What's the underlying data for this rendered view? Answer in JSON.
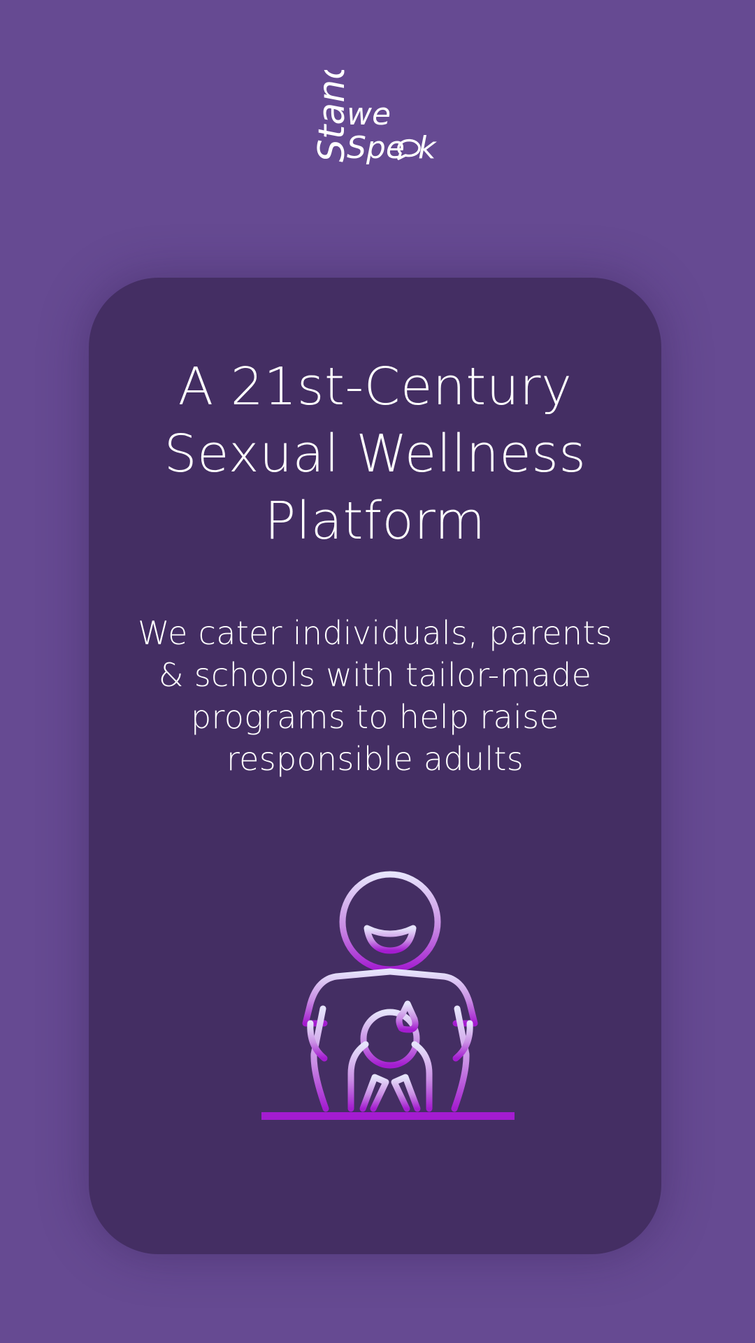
{
  "logo": {
    "word_stand": "Stand",
    "word_we": "we",
    "word_speak_a": "Spe",
    "word_speak_b": "k",
    "icon": "speech-bubble-icon"
  },
  "hero": {
    "headline_lines": [
      "A 21st-Century",
      "Sexual Wellness",
      "Platform"
    ],
    "subtext_lines": [
      "We cater individuals, parents",
      "& schools with tailor-made",
      "programs to help raise",
      "responsible adults"
    ],
    "illustration_icon": "parent-holding-baby-icon"
  },
  "colors": {
    "background": "#664a92",
    "card": "#442e63",
    "text": "#ffffff",
    "illustration_gradient_top": "#e6e4fb",
    "illustration_gradient_bottom": "#a41cd0"
  }
}
